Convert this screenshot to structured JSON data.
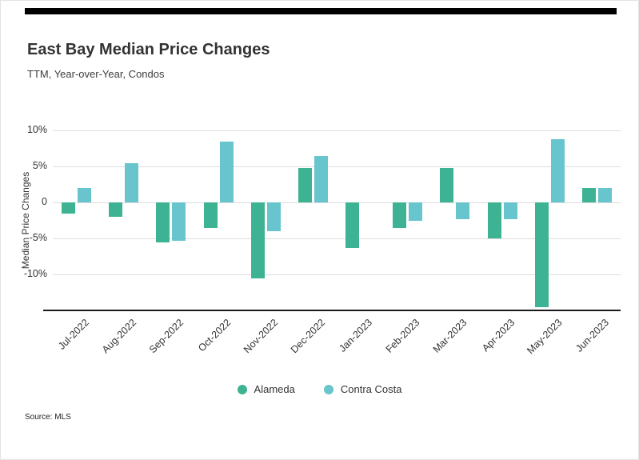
{
  "header": {
    "title": "East Bay Median Price Changes",
    "subtitle": "TTM, Year-over-Year, Condos"
  },
  "footer": {
    "source": "Source: MLS"
  },
  "chart_data": {
    "type": "bar",
    "title": "East Bay Median Price Changes",
    "subtitle": "TTM, Year-over-Year, Condos",
    "xlabel": "",
    "ylabel": "Median Price Changes",
    "categories": [
      "Jul-2022",
      "Aug-2022",
      "Sep-2022",
      "Oct-2022",
      "Nov-2022",
      "Dec-2022",
      "Jan-2023",
      "Feb-2023",
      "Mar-2023",
      "Apr-2023",
      "May-2023",
      "Jun-2023"
    ],
    "series": [
      {
        "name": "Alameda",
        "color": "#3eb394",
        "values": [
          -1.5,
          -2.0,
          -5.5,
          -3.5,
          -10.5,
          4.8,
          -6.3,
          -3.5,
          4.8,
          -5.0,
          -14.5,
          2.0
        ]
      },
      {
        "name": "Contra Costa",
        "color": "#68c5cd",
        "values": [
          2.0,
          5.5,
          -5.3,
          8.5,
          -4.0,
          6.5,
          0,
          -2.5,
          -2.3,
          -2.3,
          8.8,
          2.0
        ]
      }
    ],
    "ylim": [
      -15,
      10
    ],
    "yticks": [
      {
        "value": 10,
        "label": "10%"
      },
      {
        "value": 5,
        "label": "5%"
      },
      {
        "value": 0,
        "label": "0"
      },
      {
        "value": -5,
        "label": "-5%"
      },
      {
        "value": -10,
        "label": "-10%"
      }
    ],
    "grid": true,
    "legend_position": "bottom"
  }
}
